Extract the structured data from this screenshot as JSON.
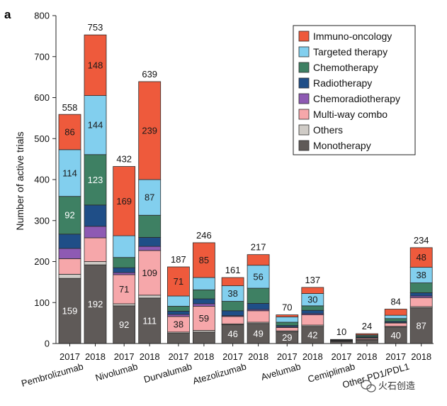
{
  "panel_label": "a",
  "colors": {
    "Immuno-oncology": "#ee5a3c",
    "Targeted therapy": "#82cfee",
    "Chemotherapy": "#3e8063",
    "Radiotherapy": "#1f4e87",
    "Chemoradiotherapy": "#8e5ab3",
    "Multi-way combo": "#f6a7aa",
    "Others": "#cfcbc6",
    "Monotherapy": "#5f5a58"
  },
  "watermark": "火石创造",
  "chart_data": {
    "type": "bar",
    "stacked": true,
    "ylabel": "Number of active trials",
    "ylim": [
      0,
      800
    ],
    "yticks": [
      0,
      100,
      200,
      300,
      400,
      500,
      600,
      700,
      800
    ],
    "grid": false,
    "legend_position": "top-right",
    "series_order": [
      "Monotherapy",
      "Others",
      "Multi-way combo",
      "Chemoradiotherapy",
      "Radiotherapy",
      "Chemotherapy",
      "Targeted therapy",
      "Immuno-oncology"
    ],
    "legend_order": [
      "Immuno-oncology",
      "Targeted therapy",
      "Chemotherapy",
      "Radiotherapy",
      "Chemoradiotherapy",
      "Multi-way combo",
      "Others",
      "Monotherapy"
    ],
    "groups": [
      {
        "drug": "Pembrolizumab",
        "bars": [
          {
            "year": "2017",
            "total": 558,
            "values": {
              "Monotherapy": 159,
              "Others": 10,
              "Multi-way combo": 38,
              "Chemoradiotherapy": 25,
              "Radiotherapy": 35,
              "Chemotherapy": 92,
              "Targeted therapy": 114,
              "Immuno-oncology": 86
            }
          },
          {
            "year": "2018",
            "total": 753,
            "values": {
              "Monotherapy": 192,
              "Others": 8,
              "Multi-way combo": 58,
              "Chemoradiotherapy": 28,
              "Radiotherapy": 52,
              "Chemotherapy": 123,
              "Targeted therapy": 144,
              "Immuno-oncology": 148
            }
          }
        ]
      },
      {
        "drug": "Nivolumab",
        "bars": [
          {
            "year": "2017",
            "total": 432,
            "values": {
              "Monotherapy": 92,
              "Others": 5,
              "Multi-way combo": 71,
              "Chemoradiotherapy": 5,
              "Radiotherapy": 12,
              "Chemotherapy": 25,
              "Targeted therapy": 53,
              "Immuno-oncology": 169
            }
          },
          {
            "year": "2018",
            "total": 639,
            "values": {
              "Monotherapy": 111,
              "Others": 7,
              "Multi-way combo": 109,
              "Chemoradiotherapy": 10,
              "Radiotherapy": 22,
              "Chemotherapy": 54,
              "Targeted therapy": 87,
              "Immuno-oncology": 239
            }
          }
        ]
      },
      {
        "drug": "Durvalumab",
        "bars": [
          {
            "year": "2017",
            "total": 187,
            "values": {
              "Monotherapy": 25,
              "Others": 3,
              "Multi-way combo": 38,
              "Chemoradiotherapy": 5,
              "Radiotherapy": 8,
              "Chemotherapy": 12,
              "Targeted therapy": 25,
              "Immuno-oncology": 71
            }
          },
          {
            "year": "2018",
            "total": 246,
            "values": {
              "Monotherapy": 28,
              "Others": 4,
              "Multi-way combo": 59,
              "Chemoradiotherapy": 6,
              "Radiotherapy": 12,
              "Chemotherapy": 22,
              "Targeted therapy": 30,
              "Immuno-oncology": 85
            }
          }
        ]
      },
      {
        "drug": "Atezolizumab",
        "bars": [
          {
            "year": "2017",
            "total": 161,
            "values": {
              "Monotherapy": 46,
              "Others": 2,
              "Multi-way combo": 18,
              "Chemoradiotherapy": 2,
              "Radiotherapy": 12,
              "Chemotherapy": 23,
              "Targeted therapy": 38,
              "Immuno-oncology": 20
            }
          },
          {
            "year": "2018",
            "total": 217,
            "values": {
              "Monotherapy": 49,
              "Others": 3,
              "Multi-way combo": 28,
              "Chemoradiotherapy": 3,
              "Radiotherapy": 15,
              "Chemotherapy": 37,
              "Targeted therapy": 56,
              "Immuno-oncology": 26
            }
          }
        ]
      },
      {
        "drug": "Avelumab",
        "bars": [
          {
            "year": "2017",
            "total": 70,
            "values": {
              "Monotherapy": 29,
              "Others": 2,
              "Multi-way combo": 8,
              "Chemoradiotherapy": 2,
              "Radiotherapy": 3,
              "Chemotherapy": 8,
              "Targeted therapy": 13,
              "Immuno-oncology": 5
            }
          },
          {
            "year": "2018",
            "total": 137,
            "values": {
              "Monotherapy": 42,
              "Others": 3,
              "Multi-way combo": 25,
              "Chemoradiotherapy": 3,
              "Radiotherapy": 8,
              "Chemotherapy": 11,
              "Targeted therapy": 30,
              "Immuno-oncology": 15
            }
          }
        ]
      },
      {
        "drug": "Cemiplimab",
        "bars": [
          {
            "year": "2017",
            "total": 10,
            "values": {
              "Monotherapy": 5,
              "Others": 0,
              "Multi-way combo": 1,
              "Chemoradiotherapy": 0,
              "Radiotherapy": 1,
              "Chemotherapy": 1,
              "Targeted therapy": 1,
              "Immuno-oncology": 1
            }
          },
          {
            "year": "2018",
            "total": 24,
            "values": {
              "Monotherapy": 9,
              "Others": 1,
              "Multi-way combo": 3,
              "Chemoradiotherapy": 1,
              "Radiotherapy": 2,
              "Chemotherapy": 3,
              "Targeted therapy": 2,
              "Immuno-oncology": 3
            }
          }
        ]
      },
      {
        "drug": "Other PD1/PDL1",
        "bars": [
          {
            "year": "2017",
            "total": 84,
            "values": {
              "Monotherapy": 40,
              "Others": 2,
              "Multi-way combo": 8,
              "Chemoradiotherapy": 1,
              "Radiotherapy": 3,
              "Chemotherapy": 7,
              "Targeted therapy": 8,
              "Immuno-oncology": 15
            }
          },
          {
            "year": "2018",
            "total": 234,
            "values": {
              "Monotherapy": 87,
              "Others": 3,
              "Multi-way combo": 22,
              "Chemoradiotherapy": 4,
              "Radiotherapy": 8,
              "Chemotherapy": 24,
              "Targeted therapy": 38,
              "Immuno-oncology": 48
            }
          }
        ]
      }
    ],
    "data_labels": [
      {
        "drug": "Pembrolizumab",
        "year": "2017",
        "series": [
          "Monotherapy",
          "Chemotherapy",
          "Targeted therapy",
          "Immuno-oncology"
        ]
      },
      {
        "drug": "Pembrolizumab",
        "year": "2018",
        "series": [
          "Monotherapy",
          "Chemotherapy",
          "Targeted therapy",
          "Immuno-oncology"
        ]
      },
      {
        "drug": "Nivolumab",
        "year": "2017",
        "series": [
          "Monotherapy",
          "Multi-way combo",
          "Immuno-oncology"
        ]
      },
      {
        "drug": "Nivolumab",
        "year": "2018",
        "series": [
          "Monotherapy",
          "Multi-way combo",
          "Targeted therapy",
          "Immuno-oncology"
        ]
      },
      {
        "drug": "Durvalumab",
        "year": "2017",
        "series": [
          "Multi-way combo",
          "Immuno-oncology"
        ]
      },
      {
        "drug": "Durvalumab",
        "year": "2018",
        "series": [
          "Multi-way combo",
          "Immuno-oncology"
        ]
      },
      {
        "drug": "Atezolizumab",
        "year": "2017",
        "series": [
          "Monotherapy",
          "Targeted therapy"
        ]
      },
      {
        "drug": "Atezolizumab",
        "year": "2018",
        "series": [
          "Monotherapy",
          "Targeted therapy"
        ]
      },
      {
        "drug": "Avelumab",
        "year": "2017",
        "series": [
          "Monotherapy"
        ]
      },
      {
        "drug": "Avelumab",
        "year": "2018",
        "series": [
          "Monotherapy",
          "Targeted therapy"
        ]
      },
      {
        "drug": "Other PD1/PDL1",
        "year": "2017",
        "series": [
          "Monotherapy"
        ]
      },
      {
        "drug": "Other PD1/PDL1",
        "year": "2018",
        "series": [
          "Monotherapy",
          "Targeted therapy",
          "Immuno-oncology"
        ]
      }
    ]
  }
}
